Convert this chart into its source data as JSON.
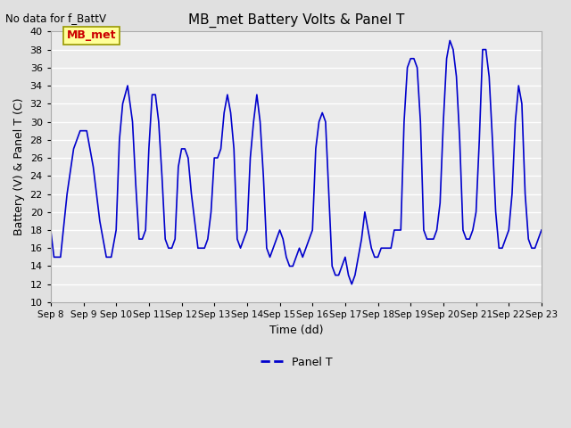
{
  "title": "MB_met Battery Volts & Panel T",
  "no_data_label": "No data for f_BattV",
  "ylabel": "Battery (V) & Panel T (C)",
  "xlabel": "Time (dd)",
  "legend_label": "Panel T",
  "legend_color": "#0000cc",
  "ylim": [
    10,
    40
  ],
  "yticks": [
    10,
    12,
    14,
    16,
    18,
    20,
    22,
    24,
    26,
    28,
    30,
    32,
    34,
    36,
    38,
    40
  ],
  "x_start": 8.0,
  "x_end": 23.0,
  "xtick_labels": [
    "Sep 8",
    "Sep 9",
    "Sep 10",
    "Sep 11",
    "Sep 12",
    "Sep 13",
    "Sep 14",
    "Sep 15",
    "Sep 16",
    "Sep 17",
    "Sep 18",
    "Sep 19",
    "Sep 20",
    "Sep 21",
    "Sep 22",
    "Sep 23"
  ],
  "xtick_positions": [
    8,
    9,
    10,
    11,
    12,
    13,
    14,
    15,
    16,
    17,
    18,
    19,
    20,
    21,
    22,
    23
  ],
  "line_color": "#0000cc",
  "bg_color": "#e0e0e0",
  "plot_bg_color": "#ebebeb",
  "grid_color": "#ffffff",
  "annotation_box_color": "#ffff99",
  "annotation_text": "MB_met",
  "annotation_text_color": "#cc0000",
  "panel_t_data_x": [
    8.0,
    8.1,
    8.3,
    8.5,
    8.7,
    8.9,
    9.0,
    9.1,
    9.3,
    9.5,
    9.7,
    9.85,
    10.0,
    10.1,
    10.2,
    10.35,
    10.5,
    10.6,
    10.7,
    10.8,
    10.9,
    11.0,
    11.1,
    11.2,
    11.3,
    11.4,
    11.5,
    11.6,
    11.7,
    11.8,
    11.9,
    12.0,
    12.1,
    12.2,
    12.3,
    12.5,
    12.6,
    12.7,
    12.8,
    12.9,
    13.0,
    13.1,
    13.2,
    13.3,
    13.4,
    13.5,
    13.6,
    13.7,
    13.8,
    13.9,
    14.0,
    14.1,
    14.2,
    14.3,
    14.4,
    14.5,
    14.6,
    14.7,
    14.8,
    14.9,
    15.0,
    15.1,
    15.2,
    15.3,
    15.4,
    15.5,
    15.6,
    15.7,
    15.8,
    15.9,
    16.0,
    16.1,
    16.2,
    16.3,
    16.4,
    16.5,
    16.6,
    16.7,
    16.8,
    16.9,
    17.0,
    17.1,
    17.2,
    17.3,
    17.4,
    17.5,
    17.6,
    17.7,
    17.8,
    17.9,
    18.0,
    18.1,
    18.2,
    18.3,
    18.4,
    18.5,
    18.6,
    18.7,
    18.8,
    18.9,
    19.0,
    19.1,
    19.2,
    19.3,
    19.4,
    19.5,
    19.6,
    19.7,
    19.8,
    19.9,
    20.0,
    20.1,
    20.2,
    20.3,
    20.4,
    20.5,
    20.6,
    20.7,
    20.8,
    20.9,
    21.0,
    21.1,
    21.2,
    21.3,
    21.4,
    21.5,
    21.6,
    21.7,
    21.8,
    21.9,
    22.0,
    22.1,
    22.2,
    22.3,
    22.4,
    22.5,
    22.6,
    22.7,
    22.8,
    22.9,
    23.0
  ],
  "panel_t_data_y": [
    18,
    15,
    15,
    22,
    27,
    29,
    29,
    29,
    25,
    19,
    15,
    15,
    18,
    28,
    32,
    34,
    30,
    23,
    17,
    17,
    18,
    27,
    33,
    33,
    30,
    24,
    17,
    16,
    16,
    17,
    25,
    27,
    27,
    26,
    22,
    16,
    16,
    16,
    17,
    20,
    26,
    26,
    27,
    31,
    33,
    31,
    27,
    17,
    16,
    17,
    18,
    26,
    30,
    33,
    30,
    24,
    16,
    15,
    16,
    17,
    18,
    17,
    15,
    14,
    14,
    15,
    16,
    15,
    16,
    17,
    18,
    27,
    30,
    31,
    30,
    22,
    14,
    13,
    13,
    14,
    15,
    13,
    12,
    13,
    15,
    17,
    20,
    18,
    16,
    15,
    15,
    16,
    16,
    16,
    16,
    18,
    18,
    18,
    30,
    36,
    37,
    37,
    36,
    30,
    18,
    17,
    17,
    17,
    18,
    21,
    30,
    37,
    39,
    38,
    35,
    28,
    18,
    17,
    17,
    18,
    20,
    28,
    38,
    38,
    35,
    28,
    20,
    16,
    16,
    17,
    18,
    22,
    30,
    34,
    32,
    22,
    17,
    16,
    16,
    17,
    18
  ]
}
